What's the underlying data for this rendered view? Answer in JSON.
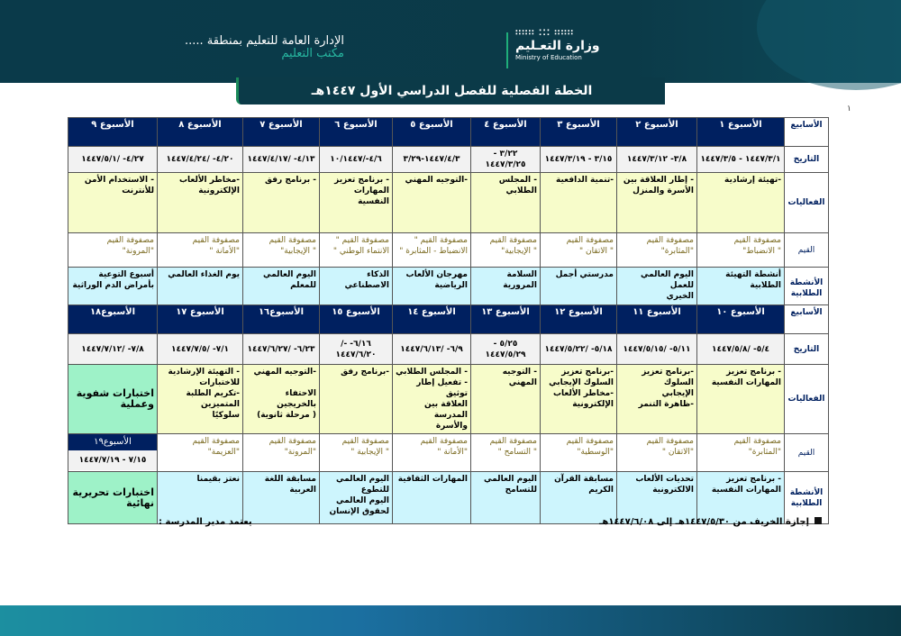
{
  "header": {
    "admin": "الإدارة العامة للتعليم بمنطقة .....",
    "office": "مكتب التعليم",
    "logo_dots": "∷∷∷ ⁚⁚⁚ ∷∷∷",
    "logo_ar": "وزارة التعـليم",
    "logo_en": "Ministry of Education",
    "title": "الخطة الفصلية للفصل الدراسي الأول ١٤٤٧هـ",
    "page_mark": "١"
  },
  "row_labels": {
    "weeks": "الأسابيع",
    "date": "التاريخ",
    "activities": "الفعاليات",
    "values": "القيم",
    "student": "الأنشطة الطلابية"
  },
  "table1": [
    {
      "week": "الأسبوع ١",
      "date": "١٤٤٧/٣/١ - ١٤٤٧/٣/٥",
      "act": "-تهيئة إرشادية",
      "val": "مصفوفة القيم\n\" الانضباط\"",
      "stu": "أنشطة التهيئة\nالطلابية"
    },
    {
      "week": "الأسبوع ٢",
      "date": "٣/٨- ١٤٤٧/٣/١٢",
      "act": "- إطار العلاقة بين\nالأسرة والمنزل",
      "val": "مصفوفة القيم\n\"المثابرة\"",
      "stu": "اليوم العالمي للعمل\nالخيري"
    },
    {
      "week": "الأسبوع ٣",
      "date": "٣/١٥ - ١٤٤٧/٣/١٩",
      "act": "-تنمية الدافعية",
      "val": "مصفوفة القيم\n\" الاتقان \"",
      "stu": "مدرستي أجمل"
    },
    {
      "week": "الأسبوع ٤",
      "date": "٣/٢٢ - ١٤٤٧/٣/٢٥",
      "act": "- المجلس الطلابي",
      "val": "مصفوفة القيم\n\" الإيجابية\"",
      "stu": "السلامة المرورية"
    },
    {
      "week": "الأسبوع ٥",
      "date": "١٤٤٧/٤/٣-٣/٢٩",
      "act": "-التوجيه المهني",
      "val": "مصفوفة القيم \"\nالانضباط - المثابرة \"",
      "stu": "مهرجان الألعاب\nالرياضية"
    },
    {
      "week": "الأسبوع ٦",
      "date": "٤/٦-/١٠/١٤٤٧",
      "act": "- برنامج تعزيز\nالمهارات النفسية",
      "val": "مصفوفة القيم \"\nالانتماء الوطني \"",
      "stu": "الذكاء الاصطناعي"
    },
    {
      "week": "الأسبوع ٧",
      "date": "٤/١٣- /١٤٤٧/٤/١٧",
      "act": "- برنامج رفق",
      "val": "مصفوفة القيم\n\" الإيجابية\"",
      "stu": "اليوم العالمي\nللمعلم"
    },
    {
      "week": "الأسبوع ٨",
      "date": "٤/٢٠- /١٤٤٧/٤/٢٤",
      "act": "-مخاطر الألعاب\nالإلكترونية",
      "val": "مصفوفة القيم\n\"الأمانة \"",
      "stu": "يوم الغذاء العالمي"
    },
    {
      "week": "الأسبوع ٩",
      "date": "٤/٢٧- /١٤٤٧/٥/١",
      "act": "- الاستخدام الأمن\nللأنترنت",
      "val": "مصفوفة القيم\n\"المرونة\"",
      "stu": "أسبوع التوعية\nبأمراض الدم الوراثية"
    }
  ],
  "table2": [
    {
      "week": "الأسبوع ١٠",
      "date": "٥/٤- /١٤٤٧/٥/٨",
      "act": "- برنامج تعزيز\nالمهارات النفسية",
      "val": "مصفوفة القيم\n\"المثابرة\"",
      "stu": "- برنامج تعزيز\nالمهارات النفسية"
    },
    {
      "week": "الأسبوع ١١",
      "date": "٥/١١- /١٤٤٧/٥/١٥",
      "act": "-برنامج تعزيز السلوك\nالإيجابي\n-ظاهرة التنمر",
      "val": "مصفوفة القيم\n\"الاتقان \"",
      "stu": "تحديات الألعاب\nالالكترونية"
    },
    {
      "week": "الأسبوع ١٢",
      "date": "٥/١٨- /١٤٤٧/٥/٢٢",
      "act": "-برنامج تعزيز\nالسلوك الإيجابي\n-مخاطر الألعاب\nالإلكترونية",
      "val": "مصفوفة القيم\n\"الوسطية\"",
      "stu": "مسابقة القرآن\nالكريم"
    },
    {
      "week": "الأسبوع ١٣",
      "date": "٥/٢٥ - ١٤٤٧/٥/٢٩",
      "act": "- التوجيه المهني",
      "val": "مصفوفة القيم\n\" التسامح \"",
      "stu": "اليوم العالمي\nللتسامح"
    },
    {
      "week": "الأسبوع ١٤",
      "date": "٦/٩- /١٤٤٧/٦/١٣",
      "act": "- المجلس الطلابي\n- تفعيل إطار توثيق\nالعلاقة بين المدرسة\nوالأسرة",
      "val": "مصفوفة القيم\n\"الأمانة \"",
      "stu": "المهارات الثقافية"
    },
    {
      "week": "الأسبوع ١٥",
      "date": "٦/١٦- -/١٤٤٧/٦/٢٠",
      "act": "-برنامج رفق",
      "val": "مصفوفة القيم\n\" الإيجابية \"",
      "stu": "اليوم العالمي\nللتطوع\nاليوم العالمي\nلحقوق الإنسان"
    },
    {
      "week": "الأسبوع١٦",
      "date": "٦/٢٣- /١٤٤٧/٦/٢٧",
      "act": "-التوجيه المهني\n\nالاحتفاء بالخريجين\n( مرحلة ثانوية)",
      "val": "مصفوفة القيم\n\"المرونة\"",
      "stu": "مسابقة اللغة\nالعربية"
    },
    {
      "week": "الأسبوع ١٧",
      "date": "٧/١- /١٤٤٧/٧/٥",
      "act": "- التهيئة الإرشادية\nللاختبارات\n-تكريم الطلبة المتميزين\nسلوكيًا",
      "val": "مصفوفة القيم\n\"العزيمة\"",
      "stu": "نعتز بقيمنا"
    },
    {
      "week": "الأسبوع١٨",
      "date": "٧/٨- /١٤٤٧/٧/١٢",
      "act": "اختبارات شفوية\nوعملية",
      "w19": "الأسبوع١٩",
      "w19_date": "٧/١٥ - ١٤٤٧/٧/١٩",
      "stu": "اختبارات تحريرية\nنهائية"
    }
  ],
  "footer": {
    "vacation": "إجازة الخريف من ١٤٤٧/٥/٣٠هـ  إلى ١٤٤٧/٦/٠٨هـ",
    "approval": "يعتمد مدير المدرسة :"
  },
  "colors": {
    "header_navy": "#002060",
    "activities": "#f7fcca",
    "student": "#cdf5fd",
    "exams": "#9ef2c8"
  }
}
